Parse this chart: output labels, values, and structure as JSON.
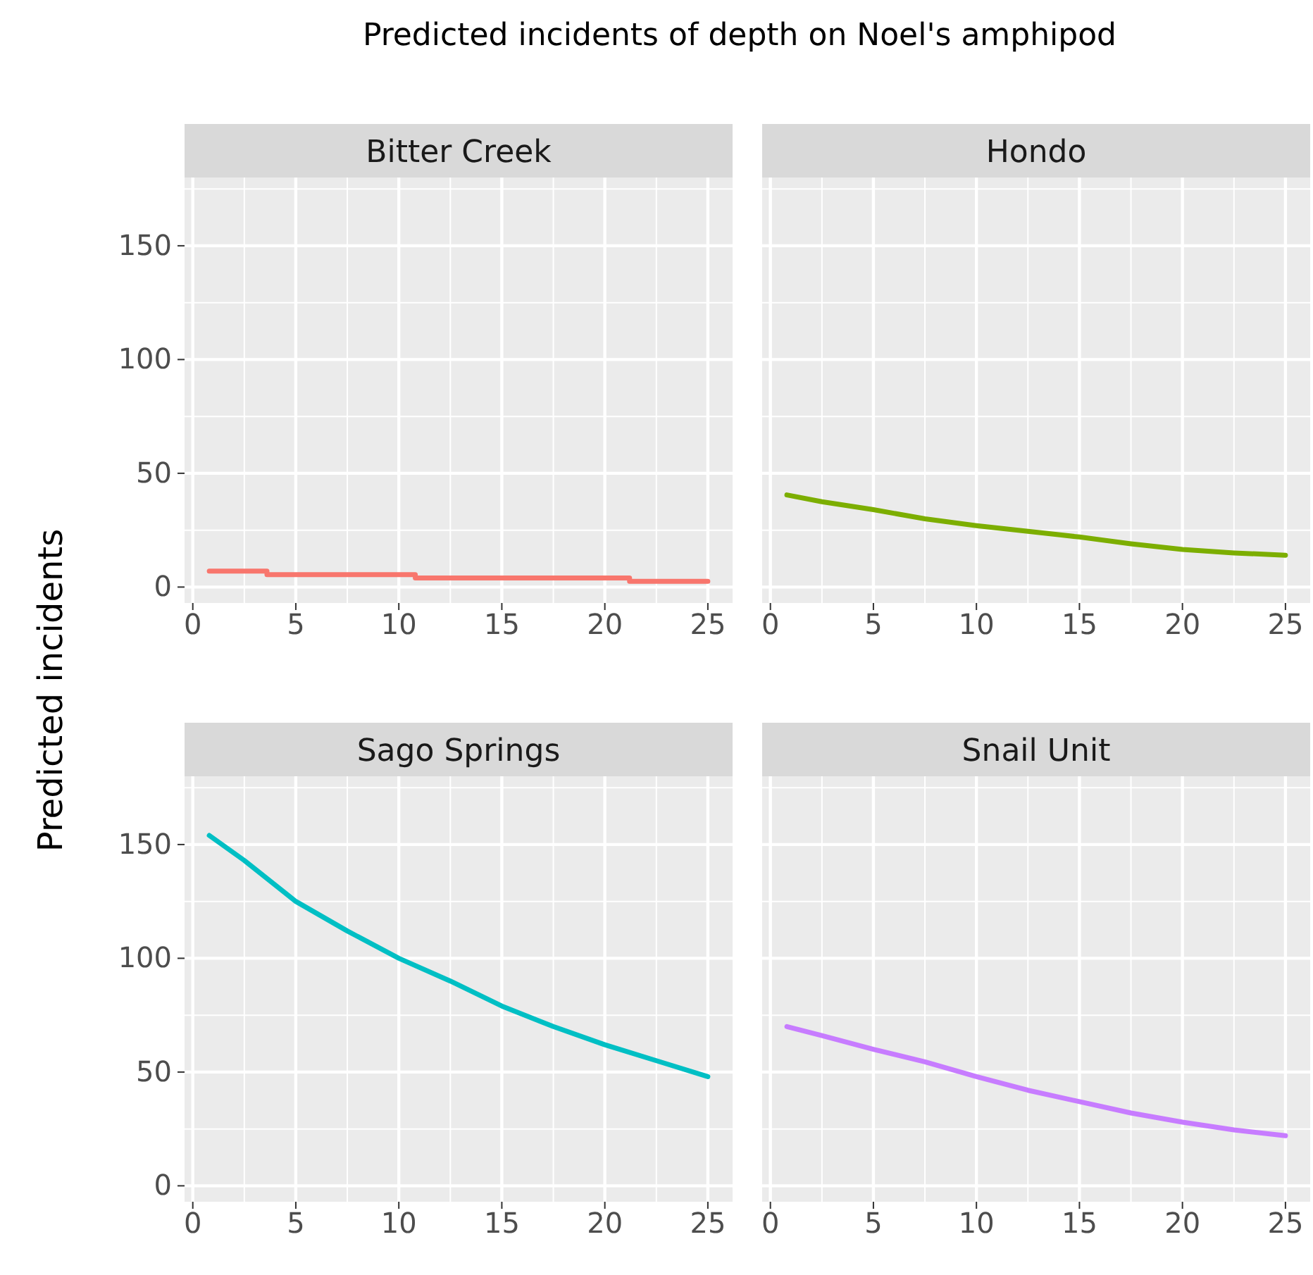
{
  "chart_data": [
    {
      "type": "step",
      "title": "Bitter Creek",
      "annotations": [
        "Predicted incidents of depth on Noel's amphipod"
      ],
      "ylabel": "Predicted incidents",
      "x": [
        0.8,
        3.6,
        10.8,
        21.2,
        25
      ],
      "values": [
        7,
        5.5,
        4,
        2.5,
        2.5
      ],
      "color": "#f8766d",
      "xlim": [
        -0.4,
        26.2
      ],
      "ylim": [
        -7,
        180
      ],
      "xticks": [
        0,
        5,
        10,
        15,
        20,
        25
      ],
      "yticks": [
        0,
        50,
        100,
        150
      ],
      "grid": true
    },
    {
      "type": "line",
      "title": "Hondo",
      "x": [
        0.8,
        2.5,
        5,
        7.5,
        10,
        12.5,
        15,
        17.5,
        20,
        22.5,
        25
      ],
      "values": [
        40.5,
        37.5,
        34,
        30,
        27,
        24.5,
        22,
        19,
        16.5,
        15,
        14
      ],
      "color": "#7cae00",
      "xlim": [
        -0.4,
        26.2
      ],
      "ylim": [
        -7,
        180
      ],
      "xticks": [
        0,
        5,
        10,
        15,
        20,
        25
      ],
      "yticks": [
        0,
        50,
        100,
        150
      ],
      "grid": true,
      "tick_labels": "x"
    },
    {
      "type": "line",
      "title": "Sago Springs",
      "x": [
        0.8,
        2.5,
        5,
        7.5,
        10,
        12.5,
        15,
        17.5,
        20,
        22.5,
        25
      ],
      "values": [
        154,
        143,
        125,
        112,
        100,
        90,
        79,
        70,
        62,
        55,
        48
      ],
      "color": "#00bfc4",
      "xlim": [
        -0.4,
        26.2
      ],
      "ylim": [
        -7,
        180
      ],
      "xticks": [
        0,
        5,
        10,
        15,
        20,
        25
      ],
      "yticks": [
        0,
        50,
        100,
        150
      ],
      "grid": true
    },
    {
      "type": "line",
      "title": "Snail Unit",
      "x": [
        0.8,
        2.5,
        5,
        7.5,
        10,
        12.5,
        15,
        17.5,
        20,
        22.5,
        25
      ],
      "values": [
        70,
        66,
        60,
        54.5,
        48,
        42,
        37,
        32,
        28,
        24.6,
        22
      ],
      "color": "#c77cff",
      "xlim": [
        -0.4,
        26.2
      ],
      "ylim": [
        -7,
        180
      ],
      "xticks": [
        0,
        5,
        10,
        15,
        20,
        25
      ],
      "yticks": [
        0,
        50,
        100,
        150
      ],
      "grid": true,
      "tick_labels": "x"
    }
  ]
}
